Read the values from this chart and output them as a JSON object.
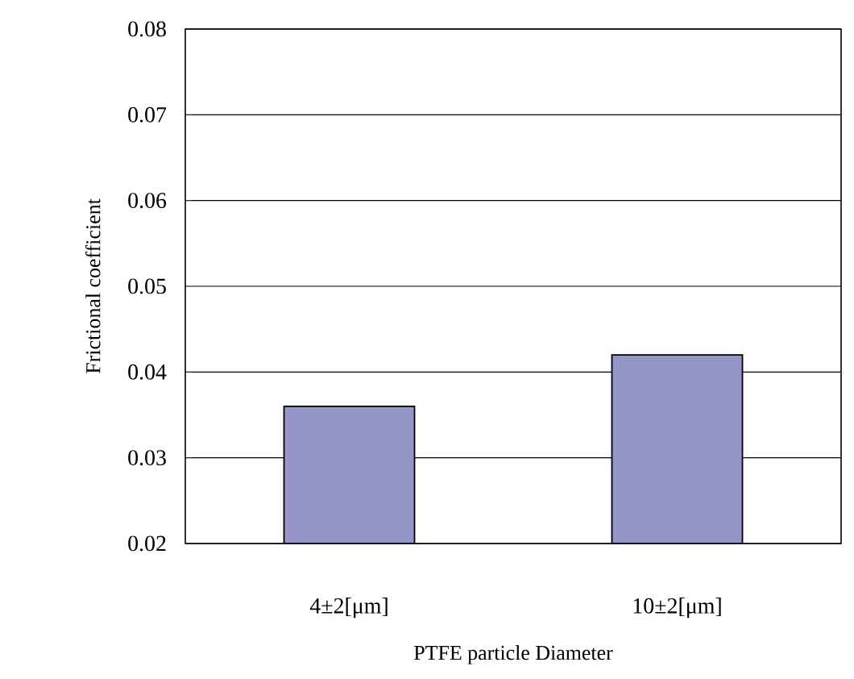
{
  "chart_data": {
    "type": "bar",
    "xlabel": "PTFE particle Diameter",
    "ylabel": "Frictional coefficient",
    "categories": [
      "4±2[μm]",
      "10±2[μm]"
    ],
    "values": [
      0.036,
      0.042
    ],
    "color": "#9595c8",
    "ylim": [
      0.02,
      0.08
    ],
    "yticks": [
      0.02,
      0.03,
      0.04,
      0.05,
      0.06,
      0.07,
      0.08
    ],
    "grid": "y"
  }
}
